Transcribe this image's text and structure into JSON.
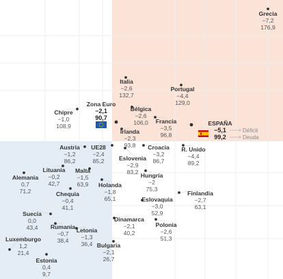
{
  "chart_data": {
    "type": "scatter",
    "title": "",
    "xlabel": "",
    "ylabel": "",
    "x_measure": "Déficit",
    "y_measure": "Deuda",
    "quadrants": {
      "high_debt_high_deficit": "#fbe3d8",
      "low_debt_low_deficit": "#e4edf6"
    },
    "legend": {
      "deficit": "Déficit",
      "debt": "Deuda"
    },
    "points": [
      {
        "name": "Grecia",
        "deficit": "−7,2",
        "debt": "176,9",
        "x": -7.2,
        "y": 176.9
      },
      {
        "name": "Italia",
        "deficit": "−2,6",
        "debt": "132,7",
        "x": -2.6,
        "y": 132.7
      },
      {
        "name": "Portugal",
        "deficit": "−4,4",
        "debt": "129,0",
        "x": -4.4,
        "y": 129.0
      },
      {
        "name": "Chipre",
        "deficit": "−1,0",
        "debt": "108,9",
        "x": -1.0,
        "y": 108.9
      },
      {
        "name": "Zona Euro",
        "deficit": "−2,1",
        "debt": "90,7",
        "x": -2.1,
        "y": 90.7,
        "highlight": true,
        "icon": "eu-flag-icon"
      },
      {
        "name": "Bélgica",
        "deficit": "−2,6",
        "debt": "106,0",
        "x": -2.6,
        "y": 106.0
      },
      {
        "name": "Francia",
        "deficit": "−3,5",
        "debt": "96,8",
        "x": -3.5,
        "y": 96.8
      },
      {
        "name": "ESPAÑA",
        "deficit": "−5,1",
        "debt": "99,2",
        "x": -5.1,
        "y": 99.2,
        "highlight": true,
        "icon": "spain-flag-icon"
      },
      {
        "name": "Irlanda",
        "deficit": "−2,3",
        "debt": "93,8",
        "x": -2.3,
        "y": 93.8
      },
      {
        "name": "Austria",
        "deficit": "−1,2",
        "debt": "86,2",
        "x": -1.2,
        "y": 86.2
      },
      {
        "name": "UE28",
        "deficit": "−2,4",
        "debt": "85,2",
        "x": -2.4,
        "y": 85.2
      },
      {
        "name": "Croacia",
        "deficit": "−3,2",
        "debt": "86,7",
        "x": -3.2,
        "y": 86.7
      },
      {
        "name": "R. Unido",
        "deficit": "−4,4",
        "debt": "89,2",
        "x": -4.4,
        "y": 89.2
      },
      {
        "name": "Eslovenia",
        "deficit": "−2,9",
        "debt": "83,2",
        "x": -2.9,
        "y": 83.2
      },
      {
        "name": "Alemania",
        "deficit": "0,7",
        "debt": "71,2",
        "x": 0.7,
        "y": 71.2
      },
      {
        "name": "Lituania",
        "deficit": "−0,2",
        "debt": "42,7",
        "x": -0.2,
        "y": 42.7
      },
      {
        "name": "Malta",
        "deficit": "−1,5",
        "debt": "63,9",
        "x": -1.5,
        "y": 63.9
      },
      {
        "name": "Hungría",
        "deficit": "−2",
        "debt": "75,3",
        "x": -2.0,
        "y": 75.3
      },
      {
        "name": "Holanda",
        "deficit": "−1,8",
        "debt": "65,1",
        "x": -1.8,
        "y": 65.1
      },
      {
        "name": "Finlandia",
        "deficit": "−2,7",
        "debt": "63,1",
        "x": -2.7,
        "y": 63.1
      },
      {
        "name": "Chequia",
        "deficit": "−0,4",
        "debt": "41,1",
        "x": -0.4,
        "y": 41.1
      },
      {
        "name": "Eslovaquia",
        "deficit": "−3,0",
        "debt": "52,9",
        "x": -3.0,
        "y": 52.9
      },
      {
        "name": "Suecia",
        "deficit": "0,0",
        "debt": "43,4",
        "x": 0.0,
        "y": 43.4
      },
      {
        "name": "Rumania",
        "deficit": "−0,7",
        "debt": "38,4",
        "x": -0.7,
        "y": 38.4
      },
      {
        "name": "Dinamarca",
        "deficit": "−2,1",
        "debt": "40,2",
        "x": -2.1,
        "y": 40.2
      },
      {
        "name": "Letonia",
        "deficit": "−1,3",
        "debt": "36,4",
        "x": -1.3,
        "y": 36.4
      },
      {
        "name": "Polonia",
        "deficit": "−2,6",
        "debt": "51,3",
        "x": -2.6,
        "y": 51.3
      },
      {
        "name": "Luxemburgo",
        "deficit": "1,2",
        "debt": "21,4",
        "x": 1.2,
        "y": 21.4
      },
      {
        "name": "Bulgaria",
        "deficit": "−2,1",
        "debt": "26,7",
        "x": -2.1,
        "y": 26.7
      },
      {
        "name": "Estonia",
        "deficit": "0,4",
        "debt": "9,7",
        "x": 0.4,
        "y": 9.7
      }
    ]
  }
}
